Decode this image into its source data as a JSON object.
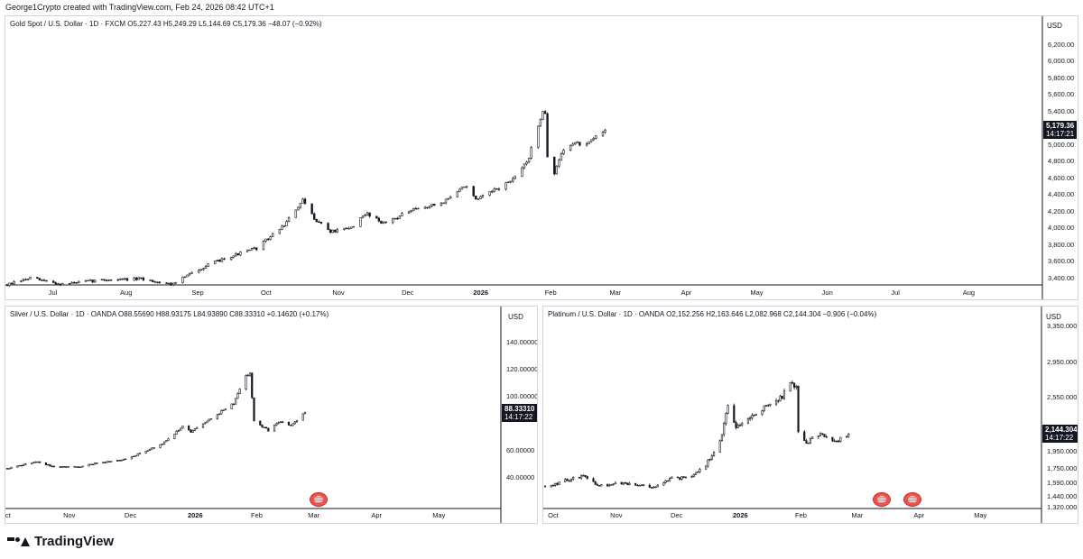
{
  "header": {
    "credit": "George1Crypto created with TradingView.com, Feb 24, 2026 08:42 UTC+1"
  },
  "brand": {
    "name": "TradingView",
    "logo_icon": "tradingview-logo-icon"
  },
  "chart_data": [
    {
      "type": "candlestick",
      "title": "Gold Spot / U.S. Dollar · 1D · FXCM",
      "ohlc_readout": "O5,227.43 H5,249.29 L5,144.69 C5,179.36 −48.07 (−0.92%)",
      "currency": "USD",
      "y_ticks": [
        "6,200.00",
        "6,000.00",
        "5,800.00",
        "5,600.00",
        "5,400.00",
        "5,200.00",
        "5,000.00",
        "4,800.00",
        "4,600.00",
        "4,400.00",
        "4,200.00",
        "4,000.00",
        "3,800.00",
        "3,600.00",
        "3,400.00"
      ],
      "y_tick_values": [
        6200,
        6000,
        5800,
        5600,
        5400,
        5200,
        5000,
        4800,
        4600,
        4400,
        4200,
        4000,
        3800,
        3600,
        3400
      ],
      "ylim": [
        3330,
        6480
      ],
      "x_labels": [
        {
          "label": "Jul",
          "date": "2025-07-01"
        },
        {
          "label": "Aug",
          "date": "2025-08-01"
        },
        {
          "label": "Sep",
          "date": "2025-09-01"
        },
        {
          "label": "Oct",
          "date": "2025-10-01"
        },
        {
          "label": "Nov",
          "date": "2025-11-01"
        },
        {
          "label": "Dec",
          "date": "2025-12-01"
        },
        {
          "label": "2026",
          "date": "2026-01-01",
          "bold": true
        },
        {
          "label": "Feb",
          "date": "2026-02-01"
        },
        {
          "label": "Mar",
          "date": "2026-03-01"
        },
        {
          "label": "Apr",
          "date": "2026-04-01"
        },
        {
          "label": "May",
          "date": "2026-05-01"
        },
        {
          "label": "Jun",
          "date": "2026-06-01"
        },
        {
          "label": "Jul",
          "date": "2026-07-01"
        },
        {
          "label": "Aug",
          "date": "2026-08-01"
        }
      ],
      "xlim": [
        "2025-06-10",
        "2026-09-01"
      ],
      "last_price": "5,179.36",
      "last_price_value": 5179.36,
      "countdown": "14:17:21",
      "up_color": "#089981",
      "down_color": "#131722",
      "key_closes": [
        {
          "date": "2025-06-10",
          "value": 3320
        },
        {
          "date": "2025-06-20",
          "value": 3400
        },
        {
          "date": "2025-07-03",
          "value": 3330
        },
        {
          "date": "2025-07-22",
          "value": 3380
        },
        {
          "date": "2025-08-07",
          "value": 3390
        },
        {
          "date": "2025-08-20",
          "value": 3330
        },
        {
          "date": "2025-09-02",
          "value": 3520
        },
        {
          "date": "2025-09-12",
          "value": 3640
        },
        {
          "date": "2025-09-26",
          "value": 3760
        },
        {
          "date": "2025-10-08",
          "value": 4040
        },
        {
          "date": "2025-10-16",
          "value": 4330
        },
        {
          "date": "2025-10-21",
          "value": 4120
        },
        {
          "date": "2025-10-28",
          "value": 3960
        },
        {
          "date": "2025-11-05",
          "value": 3990
        },
        {
          "date": "2025-11-13",
          "value": 4180
        },
        {
          "date": "2025-11-20",
          "value": 4060
        },
        {
          "date": "2025-12-02",
          "value": 4210
        },
        {
          "date": "2025-12-15",
          "value": 4300
        },
        {
          "date": "2025-12-26",
          "value": 4520
        },
        {
          "date": "2025-12-30",
          "value": 4330
        },
        {
          "date": "2026-01-08",
          "value": 4470
        },
        {
          "date": "2026-01-16",
          "value": 4600
        },
        {
          "date": "2026-01-22",
          "value": 4850
        },
        {
          "date": "2026-01-28",
          "value": 5420
        },
        {
          "date": "2026-01-29",
          "value": 5390
        },
        {
          "date": "2026-01-30",
          "value": 4860
        },
        {
          "date": "2026-02-02",
          "value": 4650
        },
        {
          "date": "2026-02-05",
          "value": 4900
        },
        {
          "date": "2026-02-10",
          "value": 5030
        },
        {
          "date": "2026-02-16",
          "value": 4990
        },
        {
          "date": "2026-02-20",
          "value": 5100
        },
        {
          "date": "2026-02-24",
          "value": 5179.36
        }
      ]
    },
    {
      "type": "candlestick",
      "title": "Silver / U.S. Dollar · 1D · OANDA",
      "ohlc_readout": "O88.55690 H88.93175 L84.93890 C88.33310 +0.14620 (+0.17%)",
      "currency": "USD",
      "y_ticks": [
        "140.00000",
        "120.00000",
        "100.00000",
        "60.00000",
        "40.00000"
      ],
      "y_tick_values": [
        140,
        120,
        100,
        60,
        40
      ],
      "ylim": [
        18,
        152
      ],
      "x_labels": [
        {
          "label": "Oct",
          "date": "2025-10-01"
        },
        {
          "label": "Nov",
          "date": "2025-11-01"
        },
        {
          "label": "Dec",
          "date": "2025-12-01"
        },
        {
          "label": "2026",
          "date": "2026-01-01",
          "bold": true
        },
        {
          "label": "Feb",
          "date": "2026-02-01"
        },
        {
          "label": "Mar",
          "date": "2026-03-01"
        },
        {
          "label": "Apr",
          "date": "2026-04-01"
        },
        {
          "label": "May",
          "date": "2026-05-01"
        }
      ],
      "xlim": [
        "2025-10-01",
        "2026-05-31"
      ],
      "last_price": "88.33310",
      "last_price_value": 88.3331,
      "countdown": "14:17:22",
      "up_color": "#089981",
      "down_color": "#131722",
      "key_closes": [
        {
          "date": "2025-10-01",
          "value": 47
        },
        {
          "date": "2025-10-16",
          "value": 52
        },
        {
          "date": "2025-10-24",
          "value": 48
        },
        {
          "date": "2025-11-05",
          "value": 48
        },
        {
          "date": "2025-11-14",
          "value": 51
        },
        {
          "date": "2025-11-26",
          "value": 53
        },
        {
          "date": "2025-12-05",
          "value": 58
        },
        {
          "date": "2025-12-15",
          "value": 64
        },
        {
          "date": "2025-12-26",
          "value": 78
        },
        {
          "date": "2025-12-30",
          "value": 74
        },
        {
          "date": "2026-01-10",
          "value": 85
        },
        {
          "date": "2026-01-20",
          "value": 95
        },
        {
          "date": "2026-01-26",
          "value": 115
        },
        {
          "date": "2026-01-28",
          "value": 118
        },
        {
          "date": "2026-01-30",
          "value": 82
        },
        {
          "date": "2026-02-03",
          "value": 78
        },
        {
          "date": "2026-02-06",
          "value": 75
        },
        {
          "date": "2026-02-12",
          "value": 82
        },
        {
          "date": "2026-02-17",
          "value": 78
        },
        {
          "date": "2026-02-24",
          "value": 88.3331
        }
      ]
    },
    {
      "type": "candlestick",
      "title": "Platinum / U.S. Dollar · 1D · OANDA",
      "ohlc_readout": "O2,152.256 H2,163.646 L2,082.968 C2,144.304 −0.906 (−0.04%)",
      "currency": "USD",
      "y_ticks": [
        "3,350.000",
        "2,950.000",
        "2,550.000",
        "1,950.000",
        "1,750.000",
        "1,590.000",
        "1,440.000",
        "1,320.000"
      ],
      "y_tick_values": [
        3350,
        2950,
        2550,
        1950,
        1750,
        1590,
        1440,
        1320
      ],
      "ylim": [
        1320,
        3350
      ],
      "x_labels": [
        {
          "label": "Oct",
          "date": "2025-10-01"
        },
        {
          "label": "Nov",
          "date": "2025-11-01"
        },
        {
          "label": "Dec",
          "date": "2025-12-01"
        },
        {
          "label": "2026",
          "date": "2026-01-01",
          "bold": true
        },
        {
          "label": "Feb",
          "date": "2026-02-01"
        },
        {
          "label": "Mar",
          "date": "2026-03-01"
        },
        {
          "label": "Apr",
          "date": "2026-04-01"
        },
        {
          "label": "May",
          "date": "2026-05-01"
        }
      ],
      "xlim": [
        "2025-09-26",
        "2026-05-31"
      ],
      "last_price": "2,144.304",
      "last_price_value": 2144.304,
      "countdown": "14:17:22",
      "up_color": "#089981",
      "down_color": "#131722",
      "key_closes": [
        {
          "date": "2025-09-26",
          "value": 1560
        },
        {
          "date": "2025-10-06",
          "value": 1620
        },
        {
          "date": "2025-10-16",
          "value": 1680
        },
        {
          "date": "2025-10-22",
          "value": 1560
        },
        {
          "date": "2025-11-01",
          "value": 1590
        },
        {
          "date": "2025-11-10",
          "value": 1570
        },
        {
          "date": "2025-11-20",
          "value": 1540
        },
        {
          "date": "2025-11-28",
          "value": 1650
        },
        {
          "date": "2025-12-08",
          "value": 1660
        },
        {
          "date": "2025-12-15",
          "value": 1800
        },
        {
          "date": "2025-12-22",
          "value": 2050
        },
        {
          "date": "2025-12-26",
          "value": 2480
        },
        {
          "date": "2025-12-30",
          "value": 2200
        },
        {
          "date": "2026-01-08",
          "value": 2360
        },
        {
          "date": "2026-01-16",
          "value": 2480
        },
        {
          "date": "2026-01-22",
          "value": 2560
        },
        {
          "date": "2026-01-26",
          "value": 2750
        },
        {
          "date": "2026-01-29",
          "value": 2660
        },
        {
          "date": "2026-01-30",
          "value": 2180
        },
        {
          "date": "2026-02-03",
          "value": 2050
        },
        {
          "date": "2026-02-10",
          "value": 2150
        },
        {
          "date": "2026-02-17",
          "value": 2040
        },
        {
          "date": "2026-02-24",
          "value": 2144.304
        }
      ]
    }
  ]
}
